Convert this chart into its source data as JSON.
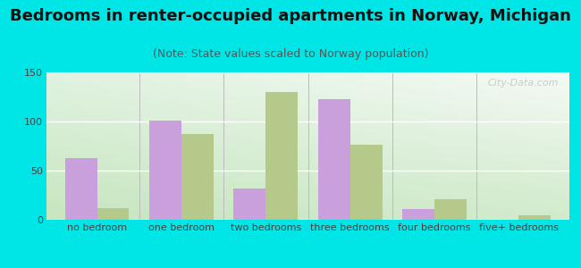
{
  "title": "Bedrooms in renter-occupied apartments in Norway, Michigan",
  "subtitle": "(Note: State values scaled to Norway population)",
  "categories": [
    "no bedroom",
    "one bedroom",
    "two bedrooms",
    "three bedrooms",
    "four bedrooms",
    "five+ bedrooms"
  ],
  "norway_values": [
    63,
    101,
    32,
    123,
    11,
    0
  ],
  "michigan_values": [
    12,
    87,
    130,
    76,
    21,
    5
  ],
  "norway_color": "#c9a0dc",
  "michigan_color": "#b5c98a",
  "background_outer": "#00e5e5",
  "ylim": [
    0,
    150
  ],
  "yticks": [
    0,
    50,
    100,
    150
  ],
  "bar_width": 0.38,
  "title_fontsize": 13,
  "subtitle_fontsize": 9,
  "tick_fontsize": 8,
  "legend_fontsize": 9.5,
  "watermark": "City-Data.com"
}
